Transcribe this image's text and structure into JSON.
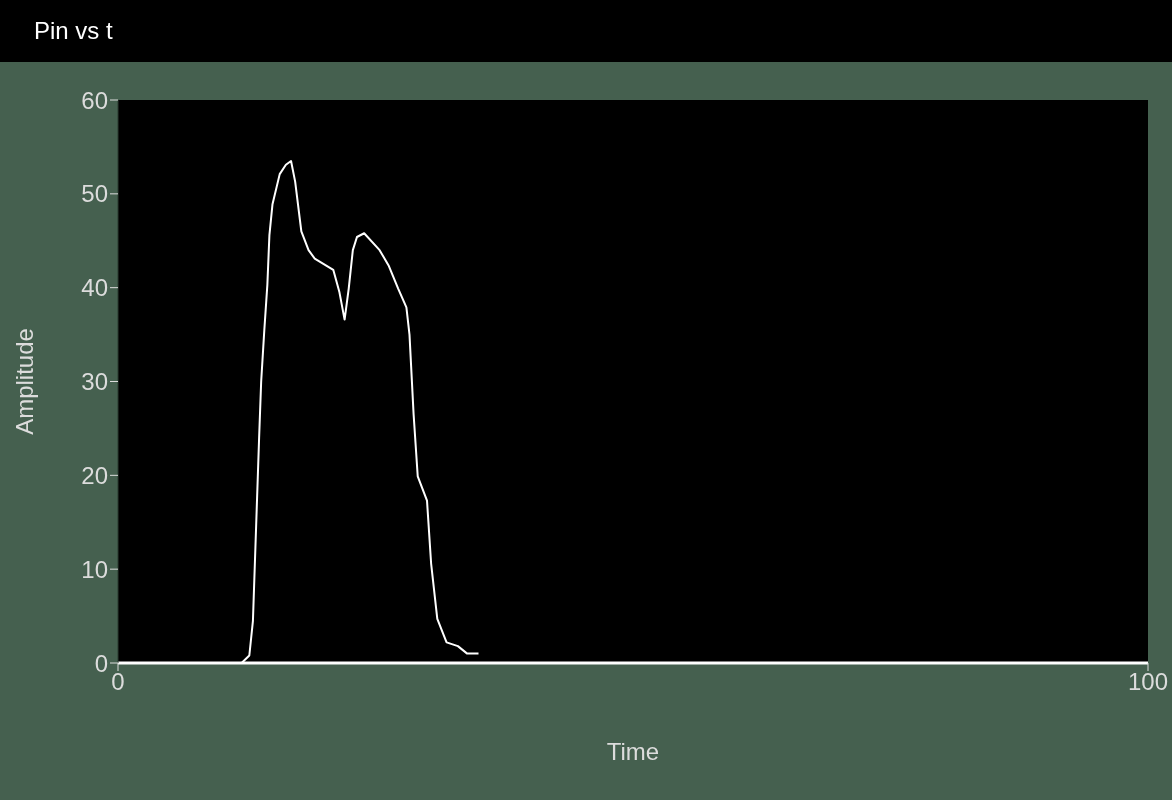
{
  "chart_data": {
    "type": "line",
    "title": "Pin vs t",
    "xlabel": "Time",
    "ylabel": "Amplitude",
    "xlim": [
      0,
      100
    ],
    "xticks": [
      0,
      100
    ],
    "ylim": [
      0,
      60
    ],
    "yticks": [
      0,
      10,
      20,
      30,
      40,
      50,
      60
    ],
    "grid": false,
    "series": [
      {
        "color": "#ffffff",
        "x": [
          0,
          12.0,
          12.75,
          13.1,
          13.3,
          13.5,
          13.7,
          13.9,
          14.2,
          14.5,
          14.7,
          15.0,
          15.7,
          16.3,
          16.8,
          17.2,
          17.8,
          18.5,
          19.1,
          20.9,
          21.5,
          22.0,
          22.4,
          22.8,
          23.2,
          23.9,
          25.4,
          26.3,
          27.2,
          28.0,
          28.3,
          28.7,
          29.1,
          30.0,
          30.4,
          31.0,
          31.9,
          33.0,
          33.9,
          35.0
        ],
        "values": [
          0,
          0,
          0.8,
          4.5,
          11,
          17.5,
          24,
          30,
          35.4,
          40.3,
          45.6,
          48.9,
          52.1,
          53.1,
          53.5,
          51.3,
          46,
          44,
          43.1,
          41.9,
          39.5,
          36.6,
          39.9,
          44,
          45.4,
          45.8,
          44,
          42.3,
          39.9,
          37.9,
          35,
          26.5,
          19.9,
          17.3,
          10.6,
          4.7,
          2.2,
          1.8,
          1.0,
          1.0
        ]
      }
    ]
  }
}
